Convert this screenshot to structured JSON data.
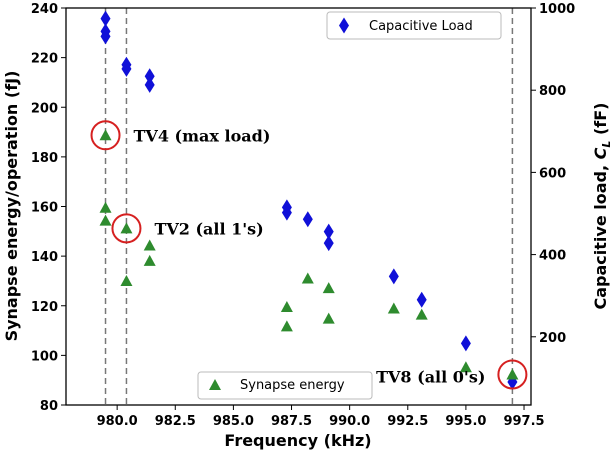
{
  "chart_data": {
    "type": "scatter",
    "xlabel": "Frequency (kHz)",
    "ylabel_left": "Synapse energy/operation (fJ)",
    "ylabel_right": "Capacitive load, C_L (fF)",
    "x_ticks": [
      "980.0",
      "982.5",
      "985.0",
      "987.5",
      "990.0",
      "992.5",
      "995.0",
      "997.5"
    ],
    "y_left_ticks": [
      "80",
      "100",
      "120",
      "140",
      "160",
      "180",
      "200",
      "220",
      "240"
    ],
    "y_right_ticks": [
      "200",
      "400",
      "600",
      "800",
      "1000"
    ],
    "xlim": [
      977.8,
      997.8
    ],
    "ylim_left": [
      80,
      240
    ],
    "ylim_right": [
      34,
      1000
    ],
    "vlines": [
      979.5,
      980.4,
      997.0
    ],
    "colors": {
      "capacitive": "#1010d8",
      "synapse": "#2e8b2e",
      "annotation_circle": "#d62020"
    },
    "series": [
      {
        "name": "Capacitive Load",
        "marker": "diamond",
        "axis": "right",
        "points": [
          [
            979.5,
            974
          ],
          [
            979.5,
            943
          ],
          [
            979.5,
            931
          ],
          [
            980.4,
            862
          ],
          [
            980.4,
            852
          ],
          [
            981.4,
            834
          ],
          [
            981.4,
            813
          ],
          [
            987.3,
            515
          ],
          [
            987.3,
            502
          ],
          [
            988.2,
            486
          ],
          [
            989.1,
            456
          ],
          [
            989.1,
            428
          ],
          [
            991.9,
            347
          ],
          [
            993.1,
            290
          ],
          [
            995.0,
            184
          ],
          [
            997.0,
            90
          ]
        ]
      },
      {
        "name": "Synapse energy",
        "marker": "triangle",
        "axis": "left",
        "points": [
          [
            979.5,
            188.7
          ],
          [
            979.5,
            159.5
          ],
          [
            979.5,
            154.3
          ],
          [
            980.4,
            151.2
          ],
          [
            980.4,
            130.0
          ],
          [
            981.4,
            144.3
          ],
          [
            981.4,
            138.1
          ],
          [
            987.3,
            119.5
          ],
          [
            987.3,
            111.7
          ],
          [
            988.2,
            131.0
          ],
          [
            989.1,
            127.1
          ],
          [
            989.1,
            114.8
          ],
          [
            991.9,
            118.9
          ],
          [
            993.1,
            116.4
          ],
          [
            995.0,
            95.2
          ],
          [
            997.0,
            92.3
          ]
        ]
      }
    ],
    "annotations": [
      {
        "text": "TV4 (max load)",
        "point": [
          979.5,
          188.7
        ]
      },
      {
        "text": "TV2 (all 1's)",
        "point": [
          980.4,
          151.2
        ]
      },
      {
        "text": "TV8 (all 0's)",
        "point": [
          997.0,
          92.3
        ]
      }
    ],
    "legend": [
      {
        "label": "Capacitive Load",
        "location": "top-right"
      },
      {
        "label": "Synapse energy",
        "location": "bottom-center"
      }
    ]
  }
}
